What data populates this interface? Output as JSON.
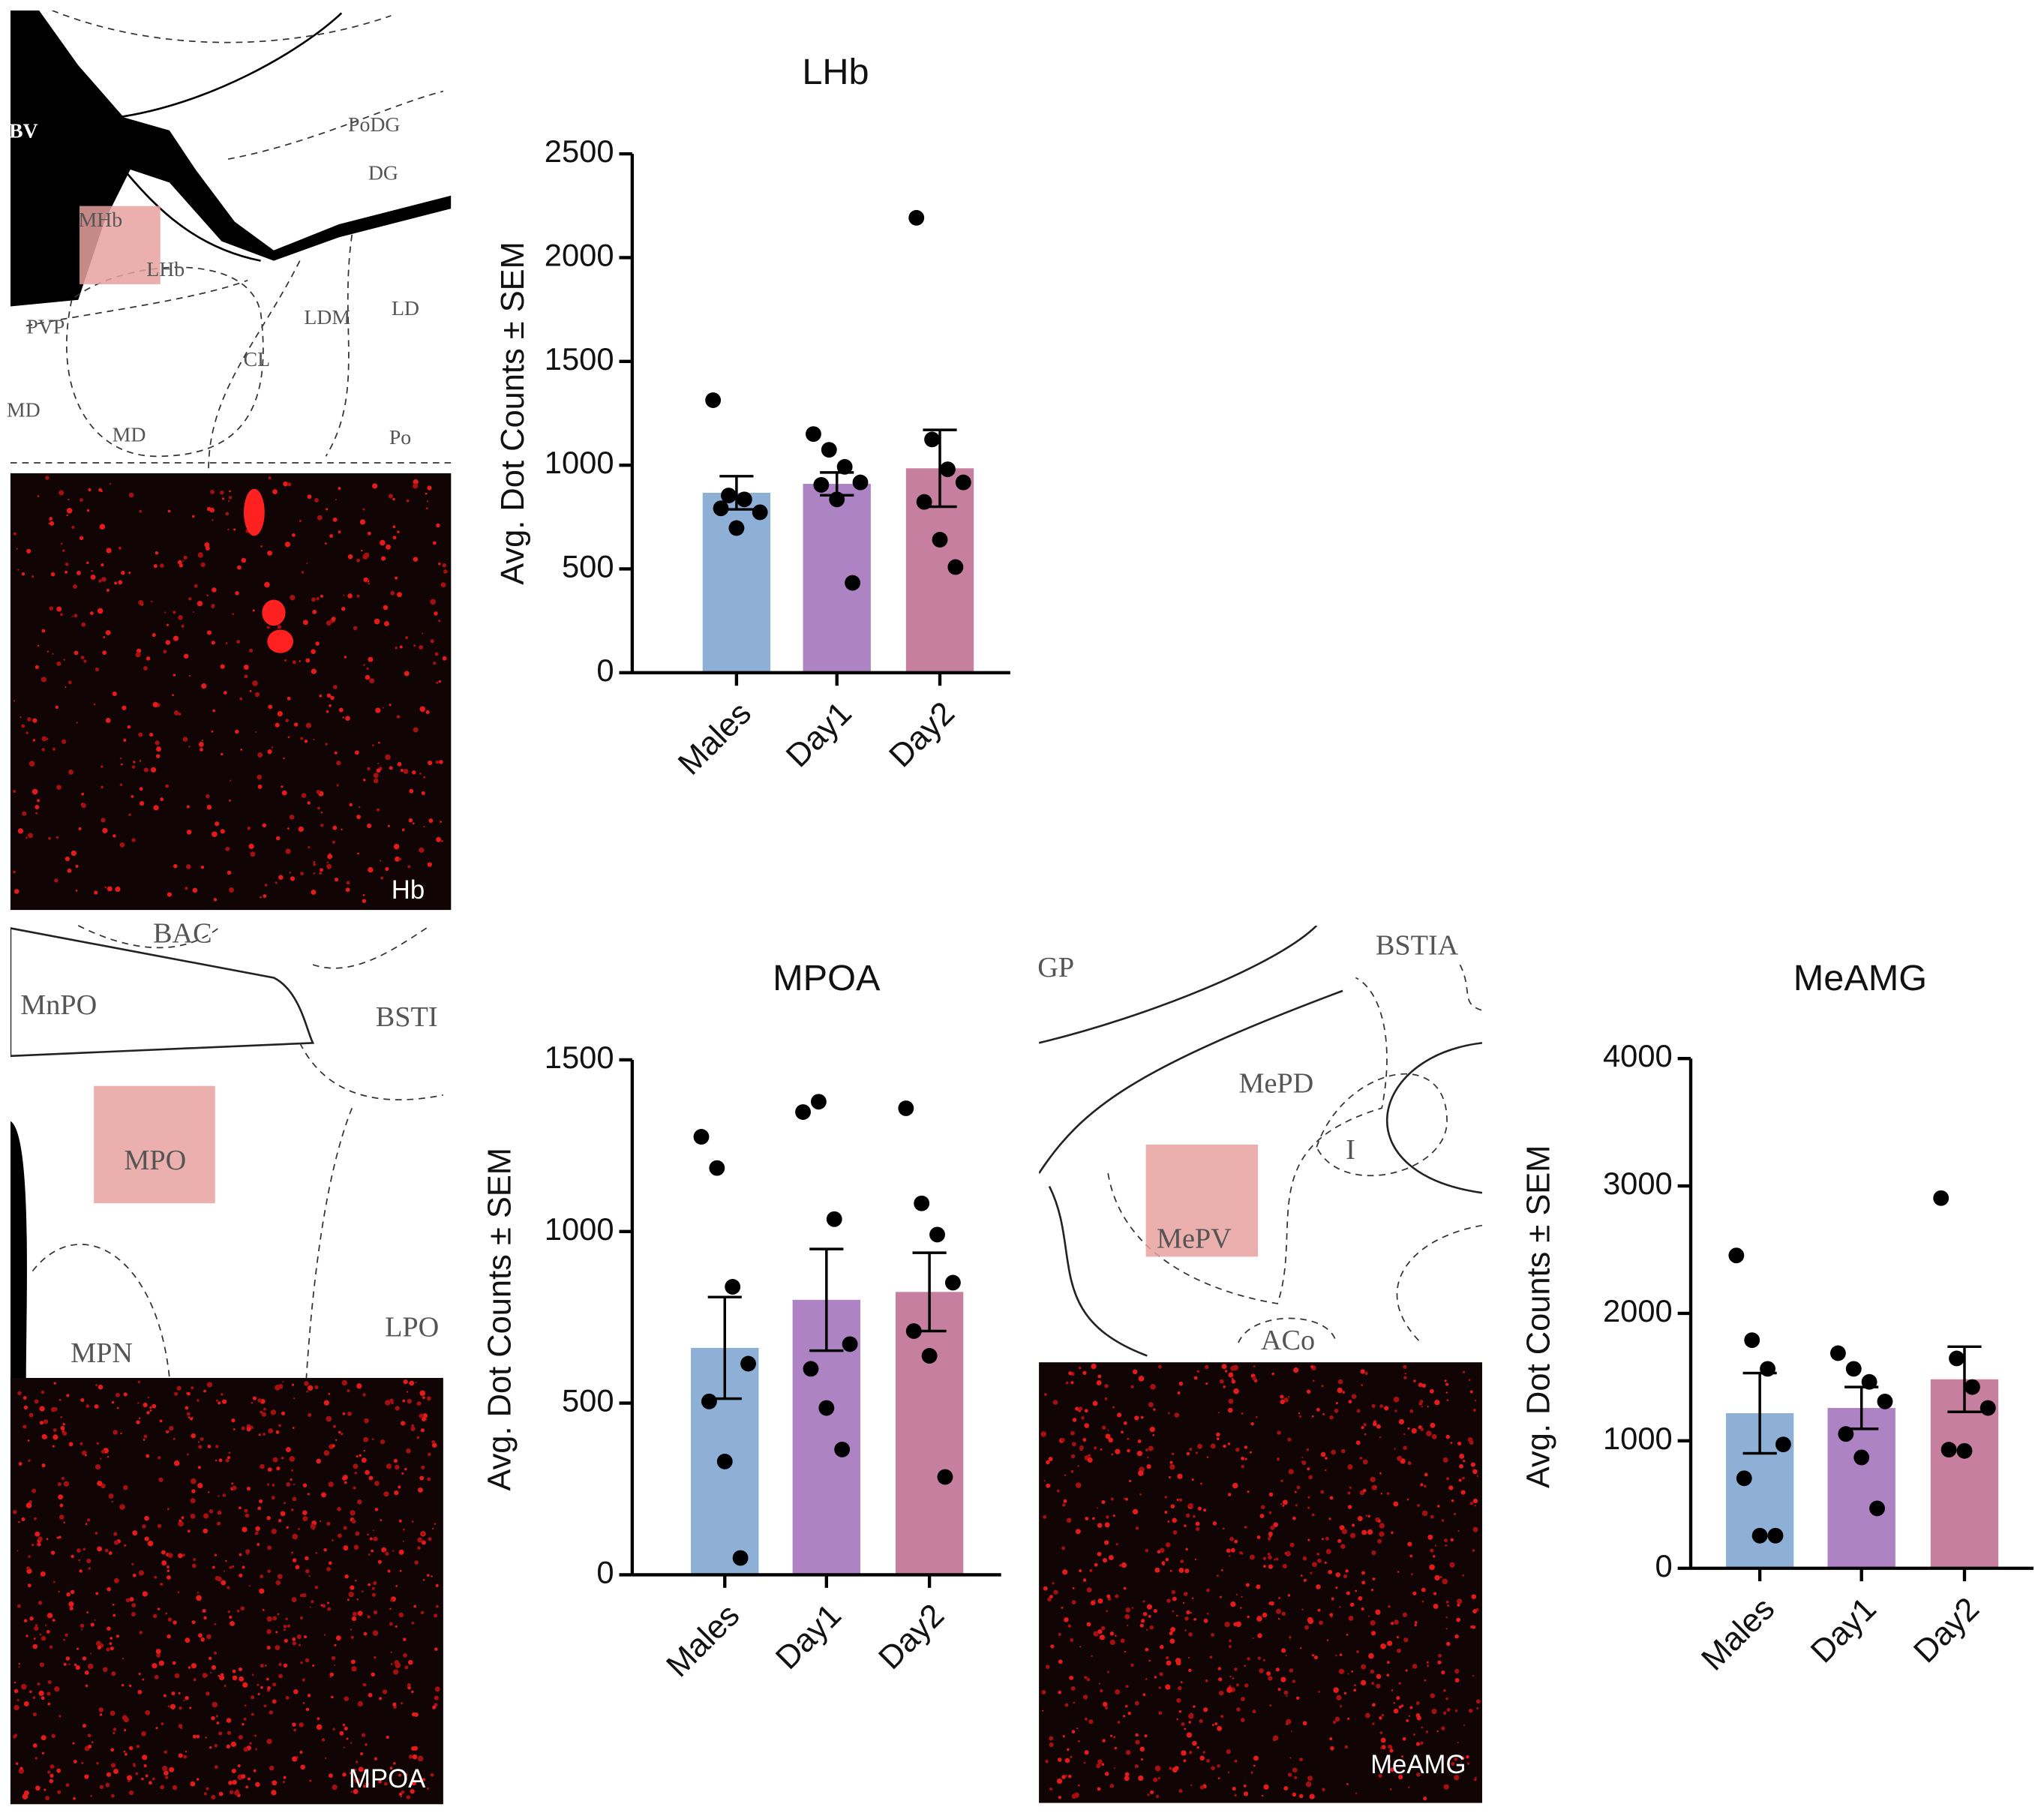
{
  "chart_data": [
    {
      "type": "bar",
      "title": "LHb",
      "ylabel": "Avg. Dot Counts ± SEM",
      "categories": [
        "Males",
        "Day1",
        "Day2"
      ],
      "colors": [
        "#8fb0d6",
        "#ae83c4",
        "#c67f9f"
      ],
      "values": [
        867,
        910,
        985
      ],
      "errors": [
        80,
        55,
        185
      ],
      "points": [
        [
          1313,
          854,
          835,
          773,
          792,
          697
        ],
        [
          1150,
          1074,
          992,
          917,
          905,
          835,
          433
        ],
        [
          2192,
          1124,
          980,
          917,
          823,
          641,
          509
        ]
      ],
      "ylim": [
        0,
        2500
      ],
      "yticks": [
        0,
        500,
        1000,
        1500,
        2000,
        2500
      ]
    },
    {
      "type": "bar",
      "title": "MPOA",
      "ylabel": "Avg. Dot Counts ± SEM",
      "categories": [
        "Males",
        "Day1",
        "Day2"
      ],
      "colors": [
        "#8fb0d6",
        "#ae83c4",
        "#c67f9f"
      ],
      "values": [
        661,
        801,
        824
      ],
      "errors": [
        148,
        148,
        114
      ],
      "points": [
        [
          1276,
          1185,
          839,
          615,
          505,
          330,
          49
        ],
        [
          1348,
          1378,
          1036,
          672,
          600,
          486,
          365
        ],
        [
          1359,
          1082,
          991,
          851,
          710,
          638,
          285
        ]
      ],
      "ylim": [
        0,
        1500
      ],
      "yticks": [
        0,
        500,
        1000,
        1500
      ]
    },
    {
      "type": "bar",
      "title": "MeAMG",
      "ylabel": "Avg. Dot Counts ± SEM",
      "categories": [
        "Males",
        "Day1",
        "Day2"
      ],
      "colors": [
        "#8fb0d6",
        "#ae83c4",
        "#c67f9f"
      ],
      "values": [
        1217,
        1258,
        1483
      ],
      "errors": [
        315,
        164,
        256
      ],
      "points": [
        [
          2455,
          1790,
          1565,
          972,
          706,
          256,
          256
        ],
        [
          1688,
          1565,
          1463,
          1309,
          1054,
          870,
          470
        ],
        [
          2905,
          1647,
          1422,
          1258,
          931,
          921
        ]
      ],
      "ylim": [
        0,
        4000
      ],
      "yticks": [
        0,
        1000,
        2000,
        3000,
        4000
      ]
    }
  ],
  "panels": [
    {
      "labels": [
        "BV",
        "PoDG",
        "DG",
        "MHb",
        "LHb",
        "PVP",
        "LDM",
        "LD",
        "CL",
        "MD",
        "MD",
        "Po"
      ],
      "image_label": "Hb"
    },
    {
      "labels": [
        "BAC",
        "MnPO",
        "BSTI",
        "MPO",
        "MPN",
        "LPO"
      ],
      "image_label": "MPOA"
    },
    {
      "labels": [
        "GP",
        "BSTIA",
        "MePD",
        "I",
        "MePV",
        "ACo"
      ],
      "image_label": "MeAMG"
    }
  ]
}
